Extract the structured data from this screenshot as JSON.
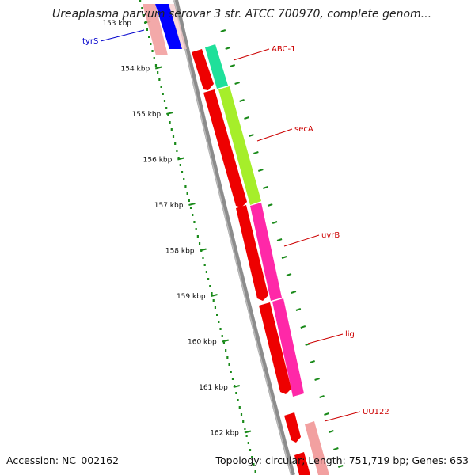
{
  "title": "Ureaplasma parvum serovar 3 str. ATCC 700970, complete genom...",
  "footer": {
    "accession": "Accession: NC_002162",
    "topology": "Topology: circular; Length: 751,719 bp; Genes: 653"
  },
  "scale_ticks": [
    {
      "kbp": 153,
      "label": "153 kbp"
    },
    {
      "kbp": 154,
      "label": "154 kbp"
    },
    {
      "kbp": 155,
      "label": "155 kbp"
    },
    {
      "kbp": 156,
      "label": "156 kbp"
    },
    {
      "kbp": 157,
      "label": "157 kbp"
    },
    {
      "kbp": 158,
      "label": "158 kbp"
    },
    {
      "kbp": 159,
      "label": "159 kbp"
    },
    {
      "kbp": 160,
      "label": "160 kbp"
    },
    {
      "kbp": 161,
      "label": "161 kbp"
    },
    {
      "kbp": 162,
      "label": "162 kbp"
    }
  ],
  "gene_labels": [
    {
      "name": "tyrS",
      "color": "#0000cc"
    },
    {
      "name": "ABC-1",
      "color": "#cc0000"
    },
    {
      "name": "secA",
      "color": "#cc0000"
    },
    {
      "name": "uvrB",
      "color": "#cc0000"
    },
    {
      "name": "lig",
      "color": "#cc0000"
    },
    {
      "name": "UU122",
      "color": "#cc0000"
    }
  ],
  "colors": {
    "backbone": "#888888",
    "tick": "#1a8a1a",
    "cds": "#ff0000",
    "abc": "#1fe09a",
    "seca": "#a6ee2a",
    "uvrb": "#ff28a8",
    "lig": "#ff28a8",
    "tyrs": "#0000ff",
    "faded": "#f2a0a0"
  }
}
